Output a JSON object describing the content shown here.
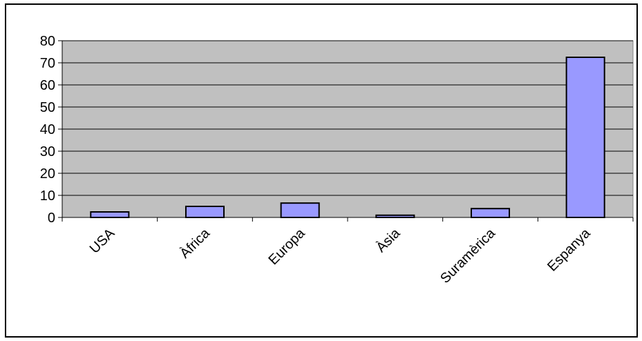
{
  "chart_data": {
    "type": "bar",
    "title": "",
    "xlabel": "",
    "ylabel": "",
    "categories": [
      "USA",
      "Àfrica",
      "Europa",
      "Àsia",
      "Suramèrica",
      "Espanya"
    ],
    "values": [
      2.5,
      5,
      6.5,
      1,
      4,
      72.5
    ],
    "ylim": [
      0,
      80
    ],
    "yticks": [
      0,
      10,
      20,
      30,
      40,
      50,
      60,
      70,
      80
    ],
    "grid": true,
    "legend": "none",
    "colors": {
      "bar_fill": "#9999ff",
      "bar_stroke": "#000000",
      "plot_background": "#c0c0c0",
      "gridline": "#000000"
    }
  }
}
